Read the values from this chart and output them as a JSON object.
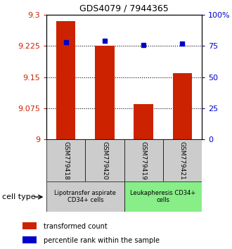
{
  "title": "GDS4079 / 7944365",
  "samples": [
    "GSM779418",
    "GSM779420",
    "GSM779419",
    "GSM779421"
  ],
  "bar_values": [
    9.285,
    9.225,
    9.085,
    9.16
  ],
  "dot_values": [
    78,
    79,
    76,
    77
  ],
  "ylim_left": [
    9.0,
    9.3
  ],
  "ylim_right": [
    0,
    100
  ],
  "yticks_left": [
    9.0,
    9.075,
    9.15,
    9.225,
    9.3
  ],
  "ytick_labels_left": [
    "9",
    "9.075",
    "9.15",
    "9.225",
    "9.3"
  ],
  "yticks_right": [
    0,
    25,
    50,
    75,
    100
  ],
  "ytick_labels_right": [
    "0",
    "25",
    "50",
    "75",
    "100%"
  ],
  "bar_color": "#cc2200",
  "dot_color": "#0000cc",
  "grid_color": "#000000",
  "group1_label": "Lipotransfer aspirate\nCD34+ cells",
  "group2_label": "Leukapheresis CD34+\ncells",
  "group1_color": "#cccccc",
  "group2_color": "#88ee88",
  "cell_type_label": "cell type",
  "legend_bar_label": "transformed count",
  "legend_dot_label": "percentile rank within the sample",
  "bar_width": 0.5,
  "left_label_color": "#cc2200",
  "right_label_color": "#0000cc"
}
